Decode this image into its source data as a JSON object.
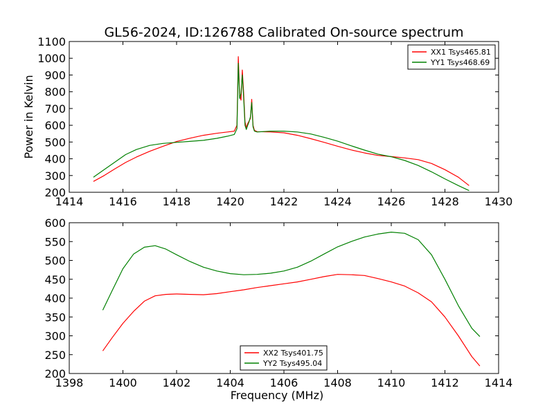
{
  "figure": {
    "title": "GL56-2024, ID:126788 Calibrated On-source spectrum"
  },
  "chart_data": [
    {
      "type": "line",
      "title": "GL56-2024, ID:126788 Calibrated On-source spectrum",
      "xlabel": "",
      "ylabel": "Power in Kelvin",
      "xlim": [
        1414,
        1430
      ],
      "ylim": [
        200,
        1100
      ],
      "xticks": [
        1414,
        1416,
        1418,
        1420,
        1422,
        1424,
        1426,
        1428,
        1430
      ],
      "yticks": [
        200,
        300,
        400,
        500,
        600,
        700,
        800,
        900,
        1000,
        1100
      ],
      "legend_position": "top-right",
      "grid": false,
      "series": [
        {
          "name": "XX1 Tsys465.81",
          "color": "#ff0000",
          "x": [
            1414.9,
            1415.3,
            1415.7,
            1416.1,
            1416.5,
            1417.0,
            1417.5,
            1418.0,
            1418.5,
            1419.0,
            1419.5,
            1419.9,
            1420.15,
            1420.25,
            1420.3,
            1420.35,
            1420.4,
            1420.45,
            1420.5,
            1420.55,
            1420.6,
            1420.65,
            1420.7,
            1420.75,
            1420.8,
            1420.85,
            1420.9,
            1421.0,
            1421.5,
            1422.0,
            1422.5,
            1423.0,
            1423.5,
            1424.0,
            1424.5,
            1425.0,
            1425.5,
            1426.0,
            1426.5,
            1427.0,
            1427.5,
            1428.0,
            1428.5,
            1428.9
          ],
          "values": [
            265,
            300,
            340,
            378,
            410,
            445,
            475,
            503,
            523,
            540,
            552,
            560,
            565,
            600,
            1010,
            780,
            750,
            930,
            790,
            620,
            585,
            610,
            625,
            640,
            755,
            600,
            570,
            562,
            560,
            555,
            540,
            520,
            498,
            475,
            453,
            435,
            420,
            413,
            405,
            395,
            372,
            335,
            290,
            240
          ]
        },
        {
          "name": "YY1 Tsys468.69",
          "color": "#008000",
          "x": [
            1414.9,
            1415.3,
            1415.7,
            1416.1,
            1416.5,
            1417.0,
            1417.5,
            1418.0,
            1418.5,
            1419.0,
            1419.5,
            1419.9,
            1420.15,
            1420.25,
            1420.3,
            1420.35,
            1420.4,
            1420.45,
            1420.5,
            1420.55,
            1420.6,
            1420.65,
            1420.7,
            1420.75,
            1420.8,
            1420.85,
            1420.9,
            1421.0,
            1421.5,
            1422.0,
            1422.5,
            1423.0,
            1423.5,
            1424.0,
            1424.5,
            1425.0,
            1425.5,
            1426.0,
            1426.5,
            1427.0,
            1427.5,
            1428.0,
            1428.5,
            1428.9
          ],
          "values": [
            290,
            335,
            380,
            425,
            455,
            480,
            492,
            498,
            504,
            510,
            522,
            535,
            545,
            580,
            970,
            760,
            790,
            900,
            760,
            600,
            575,
            600,
            620,
            650,
            735,
            590,
            565,
            560,
            565,
            565,
            560,
            548,
            528,
            505,
            478,
            452,
            428,
            412,
            390,
            360,
            322,
            280,
            240,
            210
          ]
        }
      ]
    },
    {
      "type": "line",
      "title": "",
      "xlabel": "Frequency (MHz)",
      "ylabel": "",
      "xlim": [
        1398,
        1414
      ],
      "ylim": [
        200,
        600
      ],
      "xticks": [
        1398,
        1400,
        1402,
        1404,
        1406,
        1408,
        1410,
        1412,
        1414
      ],
      "yticks": [
        200,
        250,
        300,
        350,
        400,
        450,
        500,
        550,
        600
      ],
      "legend_position": "lower-center",
      "grid": false,
      "series": [
        {
          "name": "XX2 Tsys401.75",
          "color": "#ff0000",
          "x": [
            1399.25,
            1399.6,
            1400.0,
            1400.4,
            1400.8,
            1401.2,
            1401.6,
            1402.0,
            1402.5,
            1403.0,
            1403.5,
            1404.0,
            1404.5,
            1405.0,
            1405.5,
            1406.0,
            1406.5,
            1407.0,
            1407.5,
            1408.0,
            1408.5,
            1409.0,
            1409.5,
            1410.0,
            1410.5,
            1411.0,
            1411.5,
            1412.0,
            1412.5,
            1413.0,
            1413.3
          ],
          "values": [
            260,
            295,
            333,
            365,
            392,
            406,
            410,
            411,
            410,
            409,
            412,
            417,
            422,
            428,
            433,
            438,
            443,
            450,
            457,
            463,
            462,
            460,
            452,
            443,
            432,
            414,
            390,
            350,
            300,
            245,
            220
          ]
        },
        {
          "name": "YY2 Tsys495.04",
          "color": "#008000",
          "x": [
            1399.25,
            1399.6,
            1400.0,
            1400.4,
            1400.8,
            1401.2,
            1401.6,
            1402.0,
            1402.5,
            1403.0,
            1403.5,
            1404.0,
            1404.5,
            1405.0,
            1405.5,
            1406.0,
            1406.5,
            1407.0,
            1407.5,
            1408.0,
            1408.5,
            1409.0,
            1409.5,
            1410.0,
            1410.5,
            1411.0,
            1411.5,
            1412.0,
            1412.5,
            1413.0,
            1413.3
          ],
          "values": [
            368,
            420,
            478,
            517,
            535,
            539,
            530,
            515,
            497,
            482,
            472,
            465,
            462,
            463,
            466,
            472,
            482,
            498,
            517,
            536,
            550,
            562,
            570,
            575,
            572,
            555,
            515,
            450,
            380,
            320,
            298
          ]
        }
      ]
    }
  ]
}
